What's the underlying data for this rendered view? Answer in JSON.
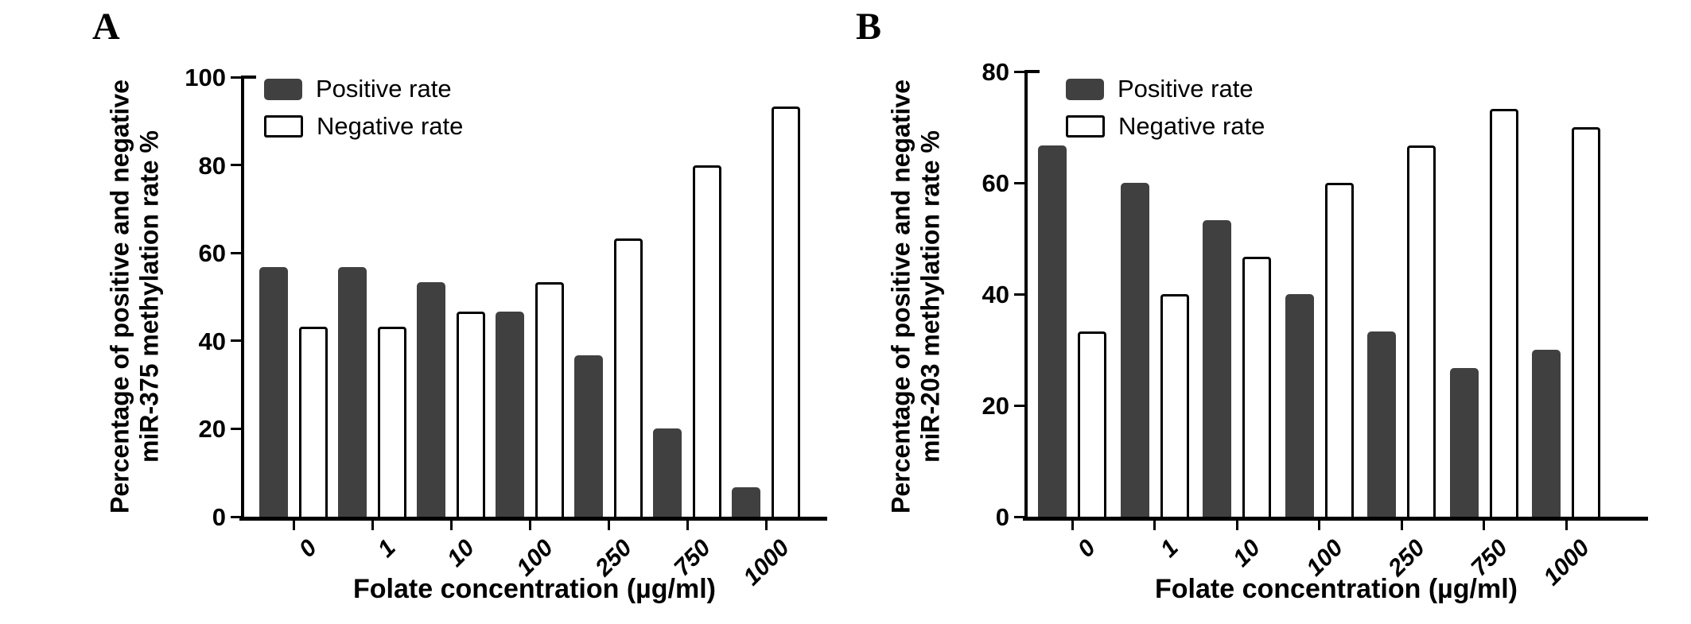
{
  "figure": {
    "panel_a_label": "A",
    "panel_b_label": "B"
  },
  "legend": {
    "positive_label": "Positive rate",
    "negative_label": "Negative rate"
  },
  "colors": {
    "positive_fill": "#404040",
    "negative_fill": "#ffffff",
    "bar_border": "#000000",
    "axis": "#000000",
    "background": "#ffffff"
  },
  "chart_data": [
    {
      "type": "bar",
      "panel": "A",
      "ylabel_line1": "Percentage of positive and negative",
      "ylabel_line2": "miR-375 methylation rate %",
      "xlabel": "Folate concentration (µg/ml)",
      "categories": [
        "0",
        "1",
        "10",
        "100",
        "250",
        "750",
        "1000"
      ],
      "series": [
        {
          "name": "Positive rate",
          "values": [
            56.7,
            56.7,
            53.3,
            46.7,
            36.7,
            20.0,
            6.7
          ]
        },
        {
          "name": "Negative rate",
          "values": [
            43.3,
            43.3,
            46.7,
            53.3,
            63.3,
            80.0,
            93.3
          ]
        }
      ],
      "ylim": [
        0,
        100
      ],
      "yticks": [
        0,
        20,
        40,
        60,
        80,
        100
      ],
      "grid": false,
      "legend_position": "top-left-inside"
    },
    {
      "type": "bar",
      "panel": "B",
      "ylabel_line1": "Percentage of positive and negative",
      "ylabel_line2": "miR-203 methylation rate %",
      "xlabel": "Folate concentration (µg/ml)",
      "categories": [
        "0",
        "1",
        "10",
        "100",
        "250",
        "750",
        "1000"
      ],
      "series": [
        {
          "name": "Positive rate",
          "values": [
            66.7,
            60.0,
            53.3,
            40.0,
            33.3,
            26.7,
            30.0
          ]
        },
        {
          "name": "Negative rate",
          "values": [
            33.3,
            40.0,
            46.7,
            60.0,
            66.7,
            73.3,
            70.0
          ]
        }
      ],
      "ylim": [
        0,
        80
      ],
      "yticks": [
        0,
        20,
        40,
        60,
        80
      ],
      "grid": false,
      "legend_position": "top-left-inside"
    }
  ]
}
